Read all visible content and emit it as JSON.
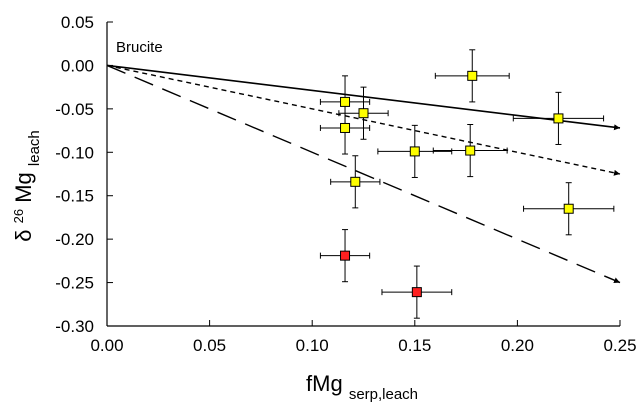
{
  "chart_data": {
    "type": "scatter",
    "title": "",
    "xlabel": {
      "main": "fMg",
      "sub": "serp,leach"
    },
    "ylabel": {
      "delta": "δ",
      "sup": "26",
      "main": "Mg",
      "sub": "leach"
    },
    "xlim": [
      0.0,
      0.25
    ],
    "ylim": [
      -0.3,
      0.05
    ],
    "x_ticks": [
      "0.00",
      "0.05",
      "0.10",
      "0.15",
      "0.20",
      "0.25"
    ],
    "y_ticks": [
      "0.05",
      "0.00",
      "-0.05",
      "-0.10",
      "-0.15",
      "-0.20",
      "-0.25",
      "-0.30"
    ],
    "annotation": "Brucite",
    "grid": false,
    "points": [
      {
        "x": 0.116,
        "y": -0.042,
        "xerr": 0.012,
        "yerr": 0.03,
        "color": "#ffff00"
      },
      {
        "x": 0.125,
        "y": -0.055,
        "xerr": 0.012,
        "yerr": 0.03,
        "color": "#ffff00"
      },
      {
        "x": 0.116,
        "y": -0.072,
        "xerr": 0.012,
        "yerr": 0.03,
        "color": "#ffff00"
      },
      {
        "x": 0.178,
        "y": -0.012,
        "xerr": 0.018,
        "yerr": 0.03,
        "color": "#ffff00"
      },
      {
        "x": 0.15,
        "y": -0.099,
        "xerr": 0.018,
        "yerr": 0.03,
        "color": "#ffff00"
      },
      {
        "x": 0.177,
        "y": -0.098,
        "xerr": 0.018,
        "yerr": 0.03,
        "color": "#ffff00"
      },
      {
        "x": 0.22,
        "y": -0.061,
        "xerr": 0.022,
        "yerr": 0.03,
        "color": "#ffff00"
      },
      {
        "x": 0.121,
        "y": -0.134,
        "xerr": 0.012,
        "yerr": 0.03,
        "color": "#ffff00"
      },
      {
        "x": 0.225,
        "y": -0.165,
        "xerr": 0.022,
        "yerr": 0.03,
        "color": "#ffff00"
      },
      {
        "x": 0.116,
        "y": -0.219,
        "xerr": 0.012,
        "yerr": 0.03,
        "color": "#ff2020"
      },
      {
        "x": 0.151,
        "y": -0.261,
        "xerr": 0.017,
        "yerr": 0.03,
        "color": "#ff2020"
      }
    ],
    "lines": [
      {
        "style": "solid",
        "x": [
          0.0,
          0.25
        ],
        "y": [
          0.0,
          -0.072
        ]
      },
      {
        "style": "short-dash",
        "x": [
          0.0,
          0.25
        ],
        "y": [
          0.0,
          -0.125
        ]
      },
      {
        "style": "long-dash",
        "x": [
          0.0,
          0.25
        ],
        "y": [
          0.0,
          -0.25
        ]
      }
    ]
  }
}
